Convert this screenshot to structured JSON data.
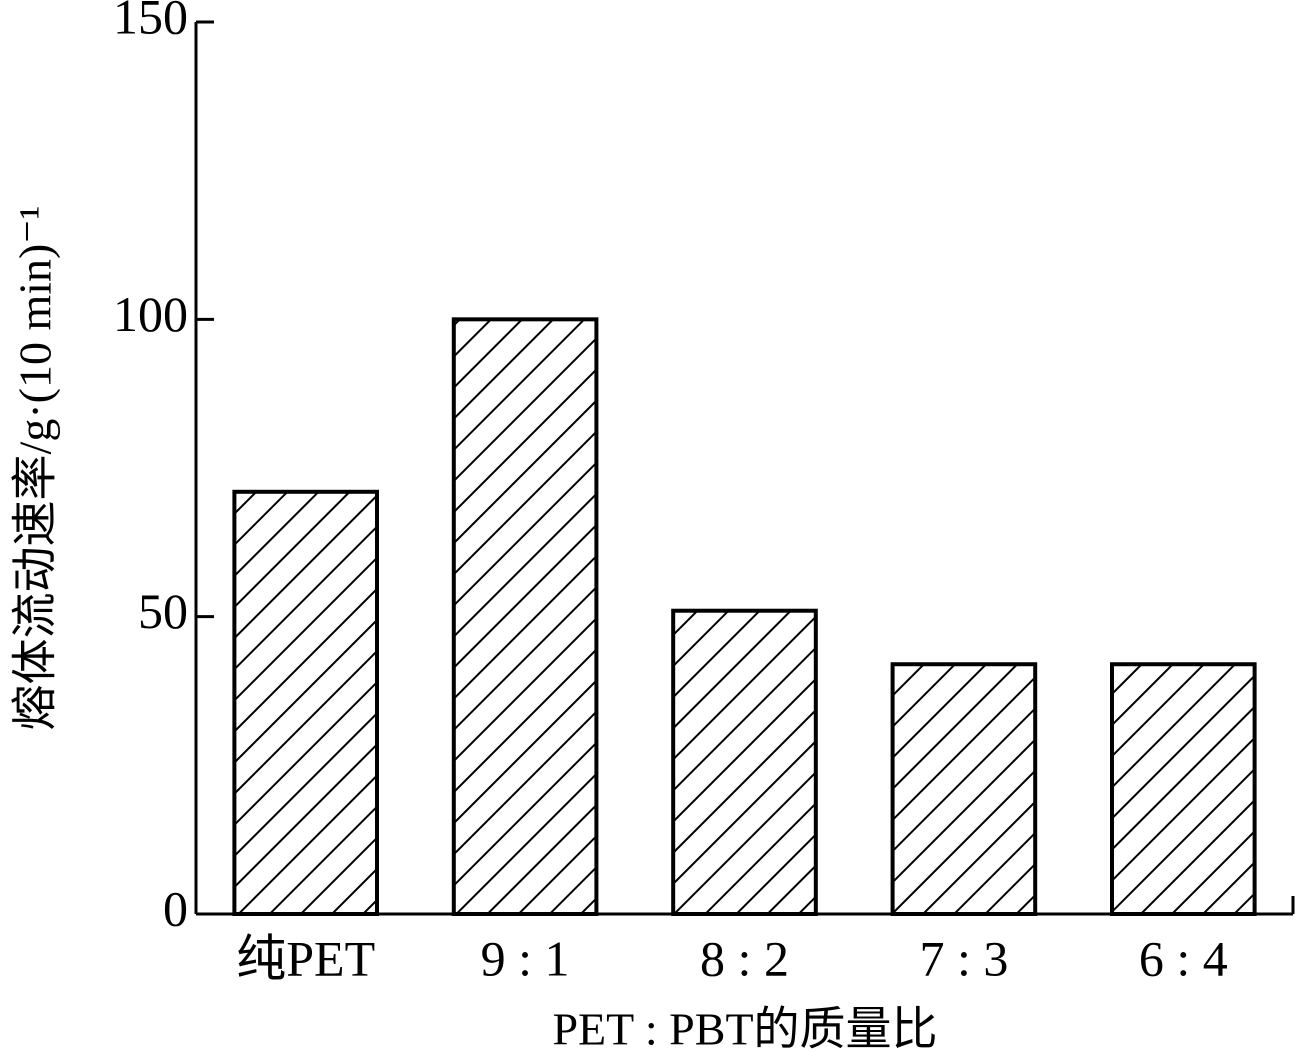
{
  "chart_data": {
    "type": "bar",
    "y_label": "熔体流动速率/g·(10 min)⁻¹",
    "x_label": "PET : PBT的质量比",
    "categories": [
      "纯PET",
      "9 : 1",
      "8 : 2",
      "7 : 3",
      "6 : 4"
    ],
    "values": [
      71,
      100,
      51,
      42,
      42
    ],
    "color": "#000000",
    "ylim": [
      0,
      150
    ],
    "yticks": [
      0,
      50,
      100,
      150
    ],
    "grid": false
  }
}
